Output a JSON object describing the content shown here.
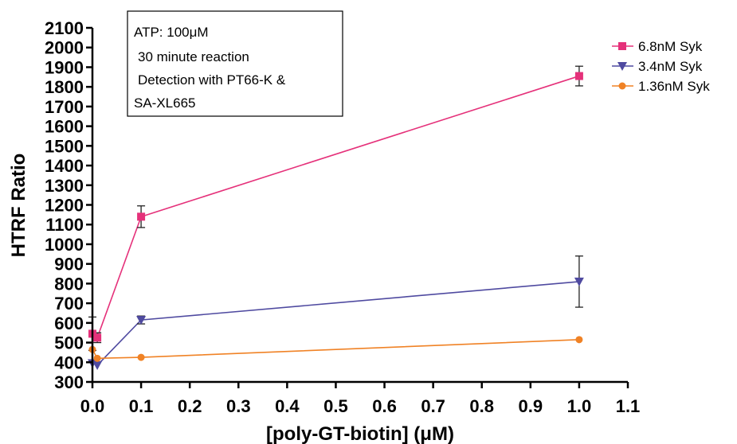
{
  "chart_data": {
    "type": "line",
    "xlabel": "[poly-GT-biotin] (μM)",
    "ylabel": "HTRF Ratio",
    "xlim": [
      0.0,
      1.1
    ],
    "ylim": [
      300,
      2100
    ],
    "x_ticks": [
      "0.0",
      "0.1",
      "0.2",
      "0.3",
      "0.4",
      "0.5",
      "0.6",
      "0.7",
      "0.8",
      "0.9",
      "1.0",
      "1.1"
    ],
    "y_ticks": [
      "300",
      "400",
      "500",
      "600",
      "700",
      "800",
      "900",
      "1000",
      "1100",
      "1200",
      "1300",
      "1400",
      "1500",
      "1600",
      "1700",
      "1800",
      "1900",
      "2000",
      "2100"
    ],
    "annotation": [
      "ATP: 100μM",
      "30 minute reaction",
      "Detection with PT66-K &",
      "SA-XL665"
    ],
    "legend_position": "top-right",
    "series": [
      {
        "name": "6.8nM Syk",
        "color": "#e5317a",
        "marker": "square",
        "x": [
          0.0,
          0.01,
          0.1,
          1.0
        ],
        "y": [
          545,
          525,
          1140,
          1855
        ],
        "err": [
          85,
          25,
          55,
          50
        ]
      },
      {
        "name": "3.4nM Syk",
        "color": "#4f4aa0",
        "marker": "triangle-down",
        "x": [
          0.0,
          0.01,
          0.1,
          1.0
        ],
        "y": [
          395,
          385,
          615,
          810
        ],
        "err": [
          0,
          0,
          20,
          130
        ]
      },
      {
        "name": "1.36nM Syk",
        "color": "#f08225",
        "marker": "circle",
        "x": [
          0.0,
          0.01,
          0.1,
          1.0
        ],
        "y": [
          465,
          420,
          425,
          515
        ],
        "err": [
          0,
          0,
          0,
          0
        ]
      }
    ]
  }
}
